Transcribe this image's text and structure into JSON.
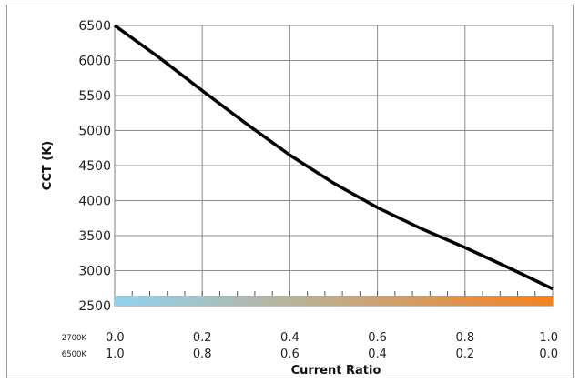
{
  "chart_data": {
    "type": "line",
    "title": "",
    "xlabel": "Current Ratio",
    "ylabel": "CCT (K)",
    "xlim": [
      0,
      1
    ],
    "ylim": [
      2500,
      6500
    ],
    "grid": true,
    "x_tick_rows": [
      {
        "label": "2700K",
        "ticks": [
          "0.0",
          "0.2",
          "0.4",
          "0.6",
          "0.8",
          "1.0"
        ]
      },
      {
        "label": "6500K",
        "ticks": [
          "1.0",
          "0.8",
          "0.6",
          "0.4",
          "0.2",
          "0.0"
        ]
      }
    ],
    "y_ticks": [
      "2500",
      "3000",
      "3500",
      "4000",
      "4500",
      "5000",
      "5500",
      "6000",
      "6500"
    ],
    "gradient_colors": [
      "#8fd3f0",
      "#f5821f"
    ],
    "series": [
      {
        "color": "#000000",
        "x": [
          0.0,
          0.1,
          0.2,
          0.3,
          0.4,
          0.5,
          0.6,
          0.7,
          0.8,
          0.9,
          1.0
        ],
        "y": [
          6500,
          6050,
          5570,
          5100,
          4650,
          4250,
          3900,
          3600,
          3330,
          3040,
          2740
        ]
      }
    ]
  }
}
